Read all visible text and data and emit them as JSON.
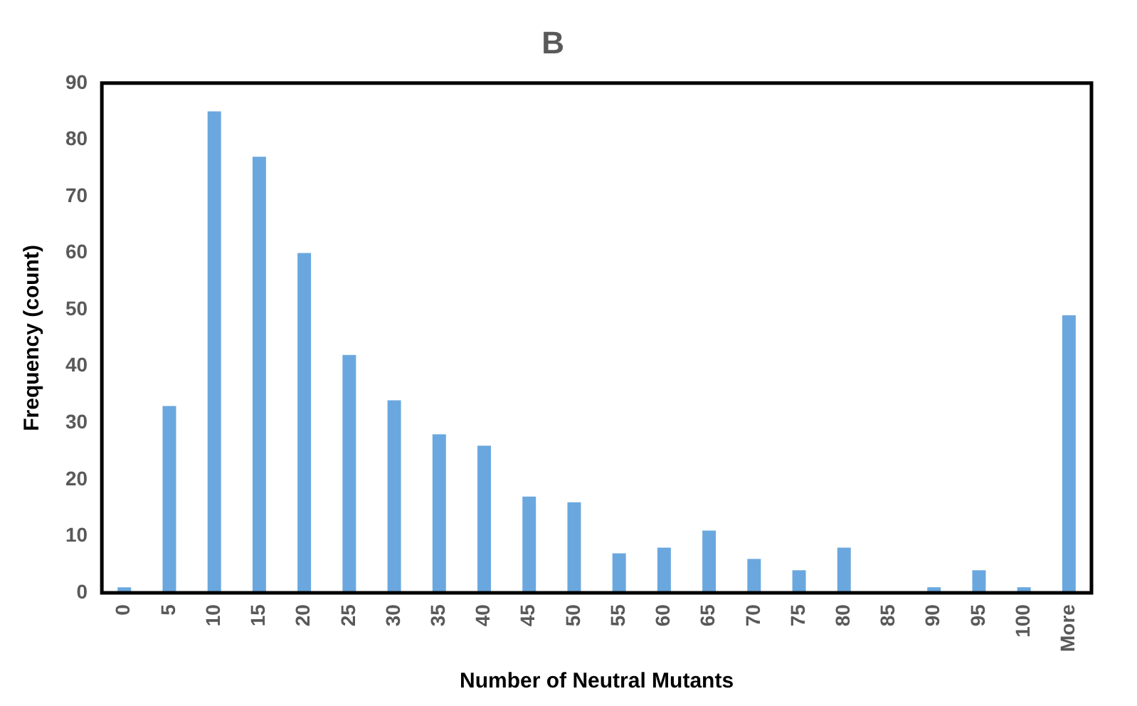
{
  "chart_data": {
    "type": "bar",
    "title": "B",
    "xlabel": "Number of Neutral Mutants",
    "ylabel": "Frequency (count)",
    "categories": [
      "0",
      "5",
      "10",
      "15",
      "20",
      "25",
      "30",
      "35",
      "40",
      "45",
      "50",
      "55",
      "60",
      "65",
      "70",
      "75",
      "80",
      "85",
      "90",
      "95",
      "100",
      "More"
    ],
    "values": [
      1,
      33,
      85,
      77,
      60,
      42,
      34,
      28,
      26,
      17,
      16,
      7,
      8,
      11,
      6,
      4,
      8,
      0,
      1,
      4,
      1,
      49
    ],
    "color": "#6aa7de",
    "ylim": [
      0,
      90
    ],
    "yticks": [
      0,
      10,
      20,
      30,
      40,
      50,
      60,
      70,
      80,
      90
    ],
    "grid": false,
    "legend": false
  }
}
